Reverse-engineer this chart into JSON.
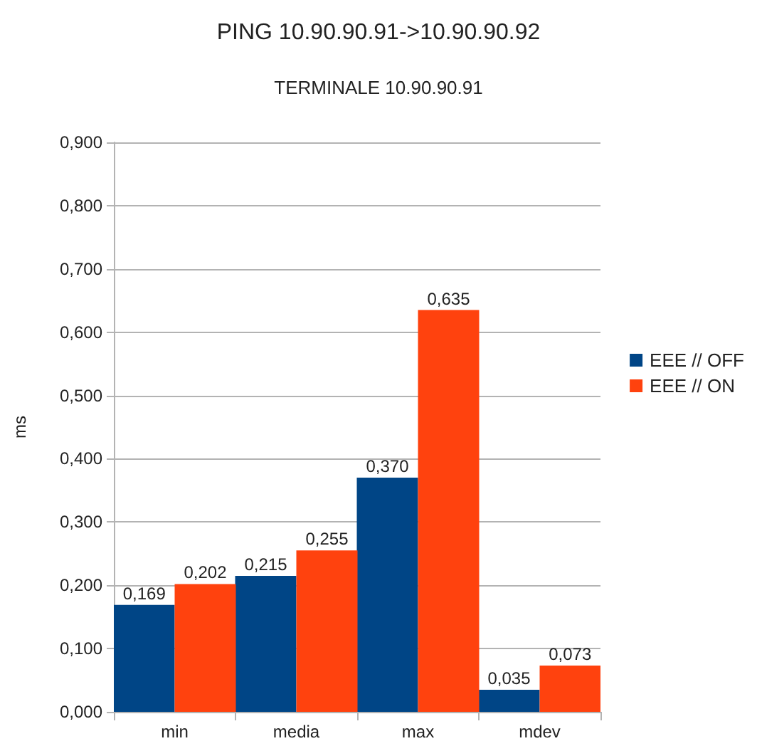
{
  "chart_data": {
    "type": "bar",
    "title": "PING 10.90.90.91->10.90.90.92",
    "subtitle": "TERMINALE 10.90.90.91",
    "ylabel": "ms",
    "categories": [
      "min",
      "media",
      "max",
      "mdev"
    ],
    "series": [
      {
        "name": "EEE // OFF",
        "color": "#004586",
        "values": [
          0.169,
          0.215,
          0.37,
          0.035
        ],
        "value_labels": [
          "0,169",
          "0,215",
          "0,370",
          "0,035"
        ]
      },
      {
        "name": "EEE // ON",
        "color": "#ff420e",
        "values": [
          0.202,
          0.255,
          0.635,
          0.073
        ],
        "value_labels": [
          "0,202",
          "0,255",
          "0,635",
          "0,073"
        ]
      }
    ],
    "ylim": [
      0,
      0.9
    ],
    "yticks": [
      {
        "value": 0,
        "label": "0,000"
      },
      {
        "value": 0.1,
        "label": "0,100"
      },
      {
        "value": 0.2,
        "label": "0,200"
      },
      {
        "value": 0.3,
        "label": "0,300"
      },
      {
        "value": 0.4,
        "label": "0,400"
      },
      {
        "value": 0.5,
        "label": "0,500"
      },
      {
        "value": 0.6,
        "label": "0,600"
      },
      {
        "value": 0.7,
        "label": "0,700"
      },
      {
        "value": 0.8,
        "label": "0,800"
      },
      {
        "value": 0.9,
        "label": "0,900"
      }
    ],
    "grid": "y",
    "legend": "right"
  }
}
